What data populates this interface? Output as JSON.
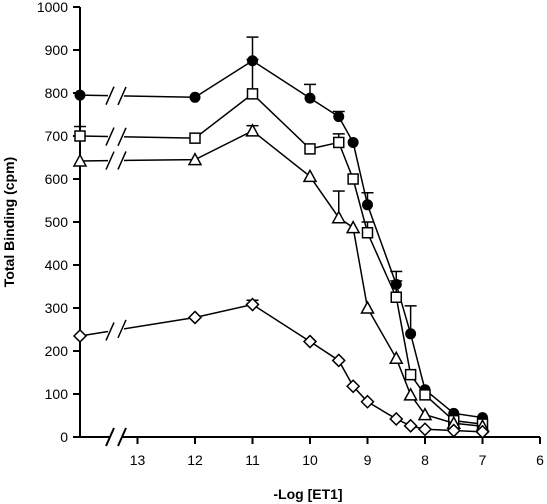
{
  "chart_data": {
    "type": "line",
    "xlabel": "-Log [ET1]",
    "ylabel": "Total Binding (cpm)",
    "xlim": [
      14,
      6
    ],
    "ylim": [
      0,
      1000
    ],
    "xticks": [
      "13",
      "12",
      "11",
      "10",
      "9",
      "8",
      "7",
      "6"
    ],
    "yticks": [
      "0",
      "100",
      "200",
      "300",
      "400",
      "500",
      "600",
      "700",
      "800",
      "900",
      "1000"
    ],
    "axis_break": true,
    "grid": false,
    "legend": "none",
    "series": [
      {
        "marker": "filled-circle",
        "color": "#000000",
        "x": [
          14,
          12,
          11,
          10,
          9.5,
          9.25,
          9,
          8.5,
          8.25,
          8,
          7.5,
          7
        ],
        "y": [
          795,
          790,
          875,
          788,
          745,
          685,
          540,
          355,
          240,
          110,
          55,
          45
        ],
        "err": [
          0,
          0,
          55,
          32,
          12,
          0,
          28,
          30,
          65,
          0,
          0,
          0
        ]
      },
      {
        "marker": "open-square",
        "color": "#000000",
        "x": [
          14,
          12,
          11,
          10,
          9.5,
          9.25,
          9,
          8.5,
          8.25,
          8,
          7.5,
          7
        ],
        "y": [
          700,
          695,
          798,
          670,
          685,
          600,
          475,
          325,
          145,
          98,
          38,
          30
        ],
        "err": [
          22,
          0,
          80,
          0,
          20,
          0,
          25,
          38,
          0,
          0,
          0,
          0
        ]
      },
      {
        "marker": "open-triangle",
        "color": "#000000",
        "x": [
          14,
          12,
          11,
          10,
          9.5,
          9.25,
          9,
          8.5,
          8.25,
          8,
          7.5,
          7
        ],
        "y": [
          642,
          645,
          712,
          606,
          510,
          487,
          300,
          183,
          98,
          52,
          32,
          25
        ],
        "err": [
          0,
          0,
          12,
          0,
          62,
          0,
          0,
          0,
          0,
          0,
          0,
          0
        ]
      },
      {
        "marker": "open-diamond",
        "color": "#000000",
        "x": [
          14,
          12,
          11,
          10,
          9.5,
          9.25,
          9,
          8.5,
          8.25,
          8,
          7.5,
          7
        ],
        "y": [
          235,
          278,
          308,
          222,
          178,
          118,
          82,
          42,
          26,
          18,
          15,
          12
        ],
        "err": [
          0,
          0,
          10,
          0,
          0,
          0,
          0,
          0,
          0,
          0,
          0,
          0
        ]
      }
    ]
  }
}
